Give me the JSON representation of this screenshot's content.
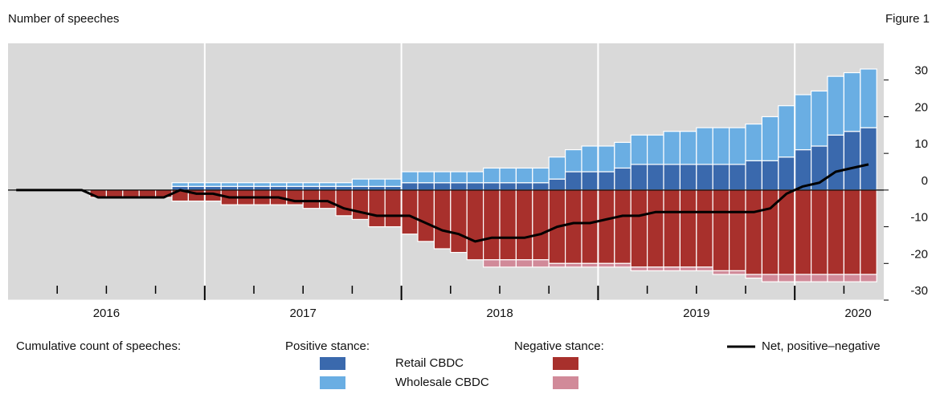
{
  "chart_data": {
    "type": "bar",
    "title": "Number of speeches",
    "figure_label": "Figure 1",
    "categories": [
      null,
      null,
      null,
      null,
      null,
      null,
      null,
      null,
      null,
      null,
      null,
      null,
      null,
      null,
      null,
      null,
      null,
      null,
      null,
      null,
      null,
      null,
      null,
      null,
      null,
      null,
      null,
      null,
      null,
      null,
      null,
      null,
      null,
      null,
      null,
      null,
      null,
      null,
      null,
      null,
      null,
      null,
      null,
      null,
      null,
      null,
      null,
      null,
      null,
      null,
      null,
      null,
      null
    ],
    "x_labels": [
      "2016",
      "2017",
      "2018",
      "2019",
      "2020"
    ],
    "ylim": [
      -30,
      40
    ],
    "yticks": [
      -30,
      -20,
      -10,
      0,
      10,
      20,
      30
    ],
    "legend_title": "Cumulative count of speeches:",
    "positive": {
      "label": "Positive stance:",
      "series": [
        {
          "name": "Retail CBDC",
          "color": "#3a69ad",
          "values": [
            0,
            0,
            0,
            0,
            0,
            0,
            0,
            0,
            0,
            0,
            1,
            1,
            1,
            1,
            1,
            1,
            1,
            1,
            1,
            1,
            1,
            1,
            1,
            1,
            2,
            2,
            2,
            2,
            2,
            2,
            2,
            2,
            2,
            3,
            5,
            5,
            5,
            6,
            7,
            7,
            7,
            7,
            7,
            7,
            7,
            8,
            8,
            9,
            11,
            12,
            15,
            16,
            17
          ]
        },
        {
          "name": "Wholesale CBDC",
          "color": "#6aaee3",
          "values": [
            0,
            0,
            0,
            0,
            0,
            0,
            0,
            0,
            0,
            0,
            1,
            1,
            1,
            1,
            1,
            1,
            1,
            1,
            1,
            1,
            1,
            2,
            2,
            2,
            3,
            3,
            3,
            3,
            3,
            4,
            4,
            4,
            4,
            6,
            6,
            7,
            7,
            7,
            8,
            8,
            9,
            9,
            10,
            10,
            10,
            10,
            12,
            14,
            15,
            15,
            16,
            16,
            16
          ]
        }
      ]
    },
    "negative": {
      "label": "Negative stance:",
      "series": [
        {
          "color": "#a8302c",
          "values": [
            0,
            0,
            0,
            0,
            0,
            -2,
            -2,
            -2,
            -2,
            -2,
            -3,
            -3,
            -3,
            -4,
            -4,
            -4,
            -4,
            -4,
            -5,
            -5,
            -7,
            -8,
            -10,
            -10,
            -12,
            -14,
            -16,
            -17,
            -19,
            -19,
            -19,
            -19,
            -19,
            -20,
            -20,
            -20,
            -20,
            -20,
            -21,
            -21,
            -21,
            -21,
            -21,
            -22,
            -22,
            -23,
            -23,
            -23,
            -23,
            -23,
            -23,
            -23,
            -23
          ]
        },
        {
          "color": "#d18a99",
          "values": [
            0,
            0,
            0,
            0,
            0,
            0,
            0,
            0,
            0,
            0,
            0,
            0,
            0,
            0,
            0,
            0,
            0,
            0,
            0,
            0,
            0,
            0,
            0,
            0,
            0,
            0,
            0,
            0,
            0,
            -2,
            -2,
            -2,
            -2,
            -1,
            -1,
            -1,
            -1,
            -1,
            -1,
            -1,
            -1,
            -1,
            -1,
            -1,
            -1,
            -1,
            -2,
            -2,
            -2,
            -2,
            -2,
            -2,
            -2
          ]
        }
      ]
    },
    "net": {
      "name": "Net, positive–negative",
      "color": "#000000",
      "values": [
        0,
        0,
        0,
        0,
        0,
        -2,
        -2,
        -2,
        -2,
        -2,
        0,
        -1,
        -1,
        -2,
        -2,
        -2,
        -2,
        -3,
        -3,
        -3,
        -5,
        -6,
        -7,
        -7,
        -7,
        -9,
        -11,
        -12,
        -14,
        -13,
        -13,
        -13,
        -12,
        -10,
        -9,
        -9,
        -8,
        -7,
        -7,
        -6,
        -6,
        -6,
        -6,
        -6,
        -6,
        -6,
        -5,
        -1,
        1,
        2,
        5,
        6,
        7
      ]
    }
  }
}
